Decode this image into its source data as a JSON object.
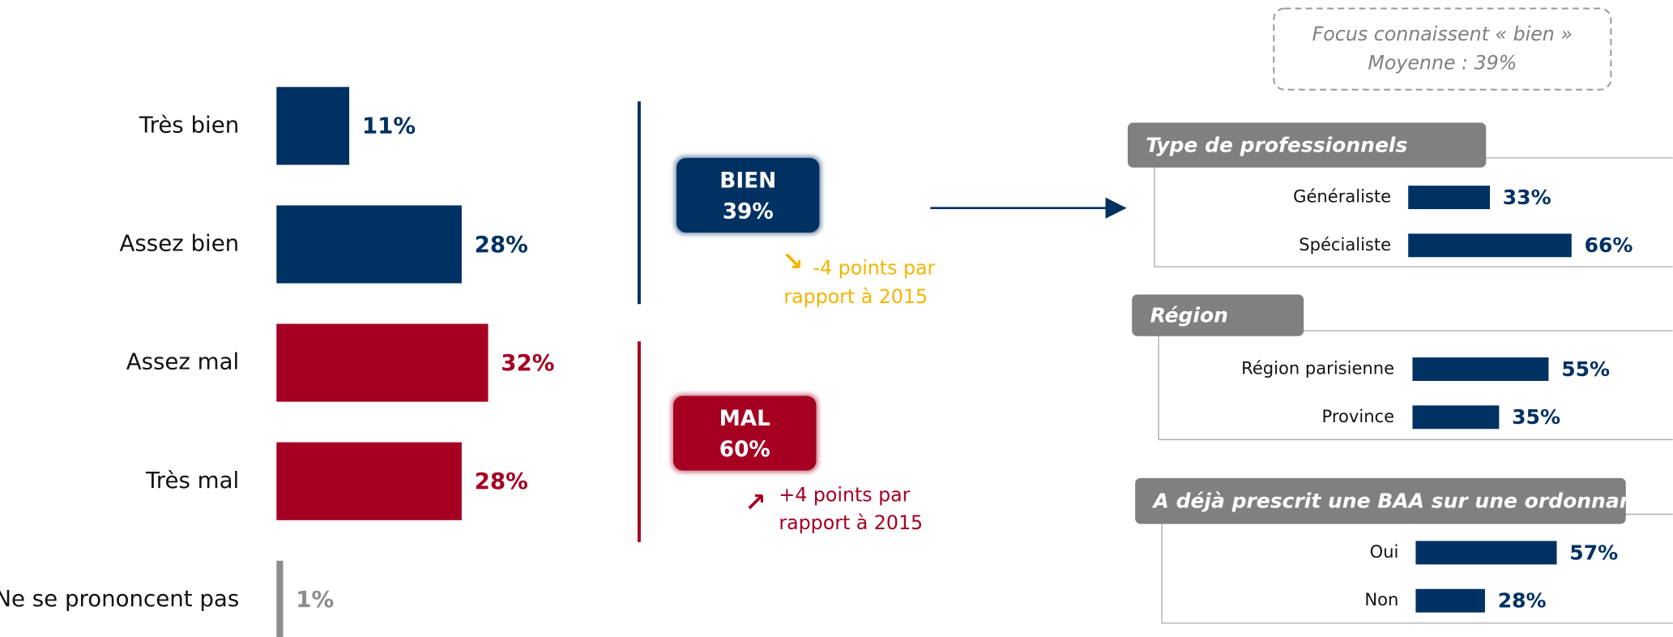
{
  "chart_data": [
    {
      "type": "bar",
      "categories": [
        "Très bien",
        "Assez bien",
        "Assez mal",
        "Très mal",
        "Ne se prononcent pas"
      ],
      "values": [
        11,
        28,
        32,
        28,
        1
      ],
      "value_labels": [
        "11%",
        "28%",
        "32%",
        "28%",
        "1%"
      ],
      "colors": [
        "#003163",
        "#003163",
        "#a50021",
        "#a50021",
        "#8c8c8c"
      ]
    },
    {
      "type": "bar",
      "title": "Type de professionnels",
      "categories": [
        "Généraliste",
        "Spécialiste"
      ],
      "values": [
        33,
        66
      ],
      "value_labels": [
        "33%",
        "66%"
      ],
      "color": "#003163"
    },
    {
      "type": "bar",
      "title": "Région",
      "categories": [
        "Région parisienne",
        "Province"
      ],
      "values": [
        55,
        35
      ],
      "value_labels": [
        "55%",
        "35%"
      ],
      "color": "#003163"
    },
    {
      "type": "bar",
      "title": "A déjà prescrit une BAA sur une ordonnance",
      "categories": [
        "Oui",
        "Non"
      ],
      "values": [
        57,
        28
      ],
      "value_labels": [
        "57%",
        "28%"
      ],
      "color": "#003163"
    }
  ],
  "summary": {
    "groups": [
      {
        "label": "BIEN",
        "value": 39,
        "value_label": "39%",
        "trend": "↘",
        "note_line1": "-4 points par",
        "note_line2": "rapport à 2015"
      },
      {
        "label": "MAL",
        "value": 60,
        "value_label": "60%",
        "trend": "↗",
        "note_line1": "+4 points par",
        "note_line2": "rapport à 2015"
      }
    ],
    "focus": {
      "line1": "Focus connaissent « bien »",
      "line2": "Moyenne : 39%"
    }
  }
}
